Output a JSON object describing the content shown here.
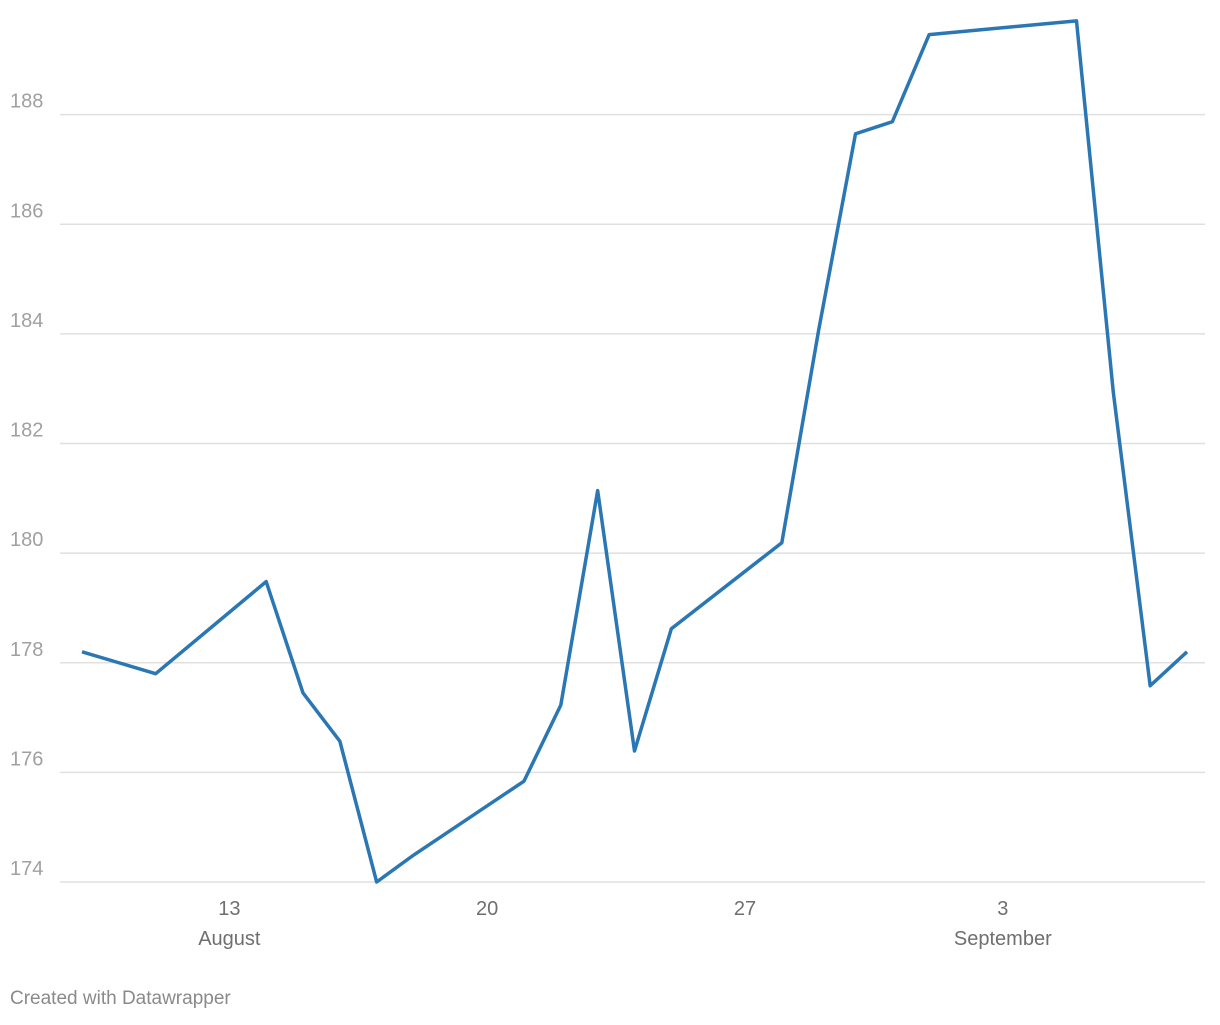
{
  "chart_data": {
    "type": "line",
    "x": [
      "August 9",
      "August 10",
      "August 11",
      "August 14",
      "August 15",
      "August 16",
      "August 17",
      "August 18",
      "August 21",
      "August 22",
      "August 23",
      "August 24",
      "August 25",
      "August 28",
      "August 29",
      "August 30",
      "August 31",
      "September 1",
      "September 5",
      "September 6",
      "September 7",
      "September 8"
    ],
    "series": [
      {
        "color": "#2a77b4",
        "values": [
          178.2,
          178.0,
          177.8,
          179.48,
          177.45,
          176.57,
          174.0,
          174.49,
          175.84,
          177.23,
          181.14,
          176.39,
          178.62,
          180.19,
          184.07,
          187.65,
          187.87,
          189.46,
          189.71,
          182.93,
          177.58,
          178.2
        ]
      }
    ],
    "xlim": [
      "August 9",
      "September 8"
    ],
    "xticks": [
      {
        "value": "August 13",
        "label": "13"
      },
      {
        "value": "August 20",
        "label": "20"
      },
      {
        "value": "August 27",
        "label": "27"
      },
      {
        "value": "September 3",
        "label": "3"
      }
    ],
    "xtick_months": [
      {
        "value": "August 13",
        "label": "August"
      },
      {
        "value": "September 3",
        "label": "September"
      }
    ],
    "ylim": [
      174,
      190
    ],
    "yticks": [
      174,
      176,
      178,
      180,
      182,
      184,
      186,
      188
    ],
    "grid": true,
    "footer": "Created with Datawrapper"
  }
}
